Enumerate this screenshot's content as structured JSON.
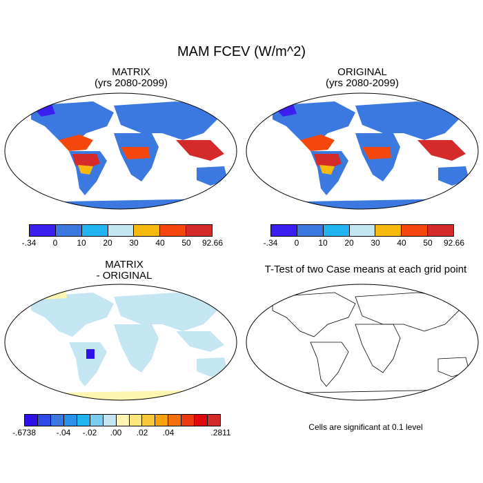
{
  "title": "MAM FCEV (W/m^2)",
  "panels": {
    "matrix": {
      "title_line1": "MATRIX",
      "title_line2": "(yrs 2080-2099)"
    },
    "original": {
      "title_line1": "ORIGINAL",
      "title_line2": "(yrs 2080-2099)"
    },
    "diff": {
      "title_line1": "MATRIX",
      "title_line2": "- ORIGINAL"
    },
    "ttest": {
      "title": "T-Test of two Case means at each grid point",
      "note": "Cells are significant at 0.1 level"
    }
  },
  "colorbars": {
    "main": {
      "colors": [
        "#3b1ff0",
        "#3b78e0",
        "#22b4ee",
        "#c4e6f2",
        "#f8b90e",
        "#f5470c",
        "#d42a2a"
      ],
      "labels": [
        "-.34",
        "0",
        "10",
        "20",
        "30",
        "40",
        "50",
        "92.66"
      ]
    },
    "diff": {
      "colors": [
        "#3010e8",
        "#2e4be8",
        "#3b78e0",
        "#2a92ea",
        "#22b4ee",
        "#7bcdf0",
        "#c4e6f2",
        "#fdf5b0",
        "#fce77a",
        "#f8c83a",
        "#f8a20e",
        "#f5700c",
        "#ee3a12",
        "#e00a0a",
        "#d42a2a"
      ],
      "labels": [
        "-.6738",
        "-.04",
        "-.02",
        ".00",
        ".02",
        ".04",
        ".2811"
      ]
    }
  },
  "colors": {
    "land_outline": "#000000",
    "ocean": "#ffffff"
  }
}
